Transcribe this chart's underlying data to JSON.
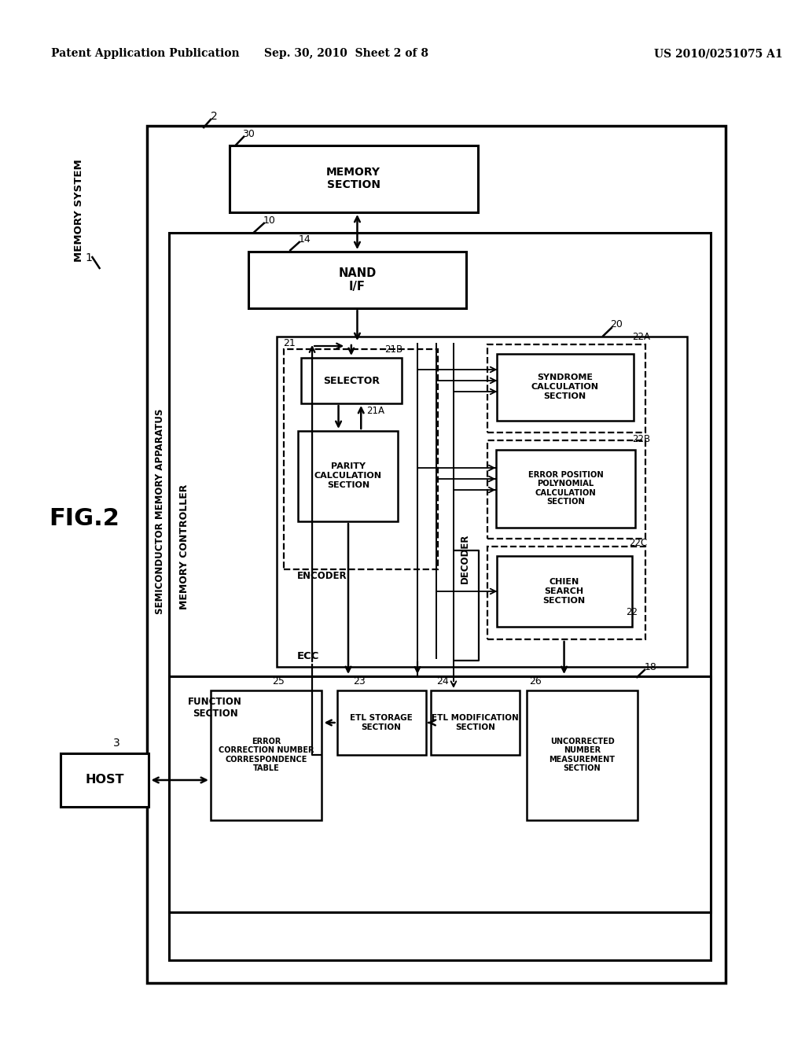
{
  "bg": "#ffffff",
  "header_l": "Patent Application Publication",
  "header_m": "Sep. 30, 2010  Sheet 2 of 8",
  "header_r": "US 2010/0251075 A1",
  "fig_label": "FIG.2",
  "ms_label": "MEMORY SYSTEM",
  "label_1": "1",
  "label_2": "2",
  "label_3": "3",
  "label_10": "10",
  "label_14": "14",
  "label_18": "18",
  "label_20": "20",
  "label_21": "21",
  "label_21A": "21A",
  "label_21B": "21B",
  "label_22": "22",
  "label_22A": "22A",
  "label_22B": "22B",
  "label_22C": "22C",
  "label_23": "23",
  "label_24": "24",
  "label_25": "25",
  "label_26": "26",
  "label_30": "30",
  "t_memory": "MEMORY\nSECTION",
  "t_nand": "NAND\nI/F",
  "t_selector": "SELECTOR",
  "t_parity": "PARITY\nCALCULATION\nSECTION",
  "t_syndrome": "SYNDROME\nCALCULATION\nSECTION",
  "t_errpos": "ERROR POSITION\nPOLYNOMIAL\nCALCULATION\nSECTION",
  "t_chien": "CHIEN\nSEARCH\nSECTION",
  "t_host": "HOST",
  "t_function": "FUNCTION\nSECTION",
  "t_errcorr": "ERROR\nCORRECTION NUMBER\nCORRESPONDENCE\nTABLE",
  "t_etlstorage": "ETL STORAGE\nSECTION",
  "t_etlmod": "ETL MODIFICATION\nSECTION",
  "t_uncorrected": "UNCORRECTED\nNUMBER\nMEASUREMENT\nSECTION",
  "t_semi": "SEMICONDUCTOR MEMORY APPARATUS",
  "t_memctrl": "MEMORY CONTROLLER",
  "t_encoder": "ENCODER",
  "t_ecc": "ECC",
  "t_decoder": "DECODER"
}
